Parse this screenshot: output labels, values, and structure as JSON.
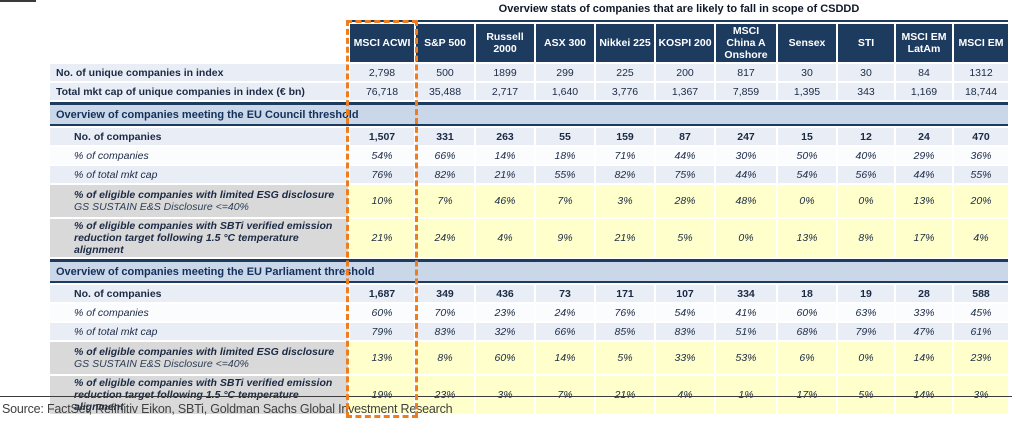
{
  "source": "Source: FactSet, Refinitiv Eikon, SBTi, Goldman Sachs Global Investment Research",
  "colors": {
    "header_navy": "#1d3a5f",
    "section_band_blue": "#c9d7e9",
    "highlight_yellow": "#ffffcb",
    "highlight_label_grey": "#d9d9d9",
    "accent_orange_dashed_box": "#ee7d1e"
  },
  "chart_data": {
    "type": "table",
    "title": "Overview stats of companies that are likely to fall in scope of CSDDD",
    "highlighted_column": "MSCI ACWI",
    "columns": [
      "MSCI ACWI",
      "S&P 500",
      "Russell 2000",
      "ASX 300",
      "Nikkei 225",
      "KOSPI 200",
      "MSCI China A Onshore",
      "Sensex",
      "STI",
      "MSCI EM LatAm",
      "MSCI EM"
    ],
    "rows": [
      {
        "kind": "metric",
        "label": "No. of unique companies in index",
        "label_style": "bold",
        "shade": "light",
        "values": [
          "2,798",
          "500",
          "1899",
          "299",
          "225",
          "200",
          "817",
          "30",
          "30",
          "84",
          "1312"
        ]
      },
      {
        "kind": "metric",
        "label": "Total mkt cap of unique companies in index (€ bn)",
        "label_style": "bold",
        "shade": "light",
        "values": [
          "76,718",
          "35,488",
          "2,717",
          "1,640",
          "3,776",
          "1,367",
          "7,859",
          "1,395",
          "343",
          "1,169",
          "18,744"
        ]
      },
      {
        "kind": "section",
        "label": "Overview of companies meeting the EU Council threshold"
      },
      {
        "kind": "metric",
        "label": "No. of companies",
        "label_style": "bold",
        "indent": true,
        "values_bold": true,
        "shade": "light",
        "values": [
          "1,507",
          "331",
          "263",
          "55",
          "159",
          "87",
          "247",
          "15",
          "12",
          "24",
          "470"
        ]
      },
      {
        "kind": "metric",
        "label": "% of companies",
        "label_style": "italic",
        "indent": true,
        "values_italic": true,
        "shade": "white",
        "values": [
          "54%",
          "66%",
          "14%",
          "18%",
          "71%",
          "44%",
          "30%",
          "50%",
          "40%",
          "29%",
          "36%"
        ]
      },
      {
        "kind": "metric",
        "label": "% of total mkt cap",
        "label_style": "italic",
        "indent": true,
        "values_italic": true,
        "shade": "light",
        "values": [
          "76%",
          "82%",
          "21%",
          "55%",
          "82%",
          "75%",
          "44%",
          "54%",
          "56%",
          "44%",
          "55%"
        ]
      },
      {
        "kind": "highlight",
        "label": "% of eligible companies with limited ESG disclosure",
        "sublabel": "GS SUSTAIN E&S Disclosure <=40%",
        "values": [
          "10%",
          "7%",
          "46%",
          "7%",
          "3%",
          "28%",
          "48%",
          "0%",
          "0%",
          "13%",
          "20%"
        ]
      },
      {
        "kind": "highlight",
        "label": "% of eligible companies with SBTi verified emission reduction target following 1.5 °C temperature alignment",
        "sublabel": "",
        "values": [
          "21%",
          "24%",
          "4%",
          "9%",
          "21%",
          "5%",
          "0%",
          "13%",
          "8%",
          "17%",
          "4%"
        ]
      },
      {
        "kind": "section",
        "label": "Overview of companies meeting the EU Parliament threshold"
      },
      {
        "kind": "metric",
        "label": "No. of companies",
        "label_style": "bold",
        "indent": true,
        "values_bold": true,
        "shade": "light",
        "values": [
          "1,687",
          "349",
          "436",
          "73",
          "171",
          "107",
          "334",
          "18",
          "19",
          "28",
          "588"
        ]
      },
      {
        "kind": "metric",
        "label": "% of companies",
        "label_style": "italic",
        "indent": true,
        "values_italic": true,
        "shade": "white",
        "values": [
          "60%",
          "70%",
          "23%",
          "24%",
          "76%",
          "54%",
          "41%",
          "60%",
          "63%",
          "33%",
          "45%"
        ]
      },
      {
        "kind": "metric",
        "label": "% of total mkt cap",
        "label_style": "italic",
        "indent": true,
        "values_italic": true,
        "shade": "light",
        "values": [
          "79%",
          "83%",
          "32%",
          "66%",
          "85%",
          "83%",
          "51%",
          "68%",
          "79%",
          "47%",
          "61%"
        ]
      },
      {
        "kind": "highlight",
        "label": "% of eligible companies with limited ESG disclosure",
        "sublabel": "GS SUSTAIN E&S Disclosure <=40%",
        "values": [
          "13%",
          "8%",
          "60%",
          "14%",
          "5%",
          "33%",
          "53%",
          "6%",
          "0%",
          "14%",
          "23%"
        ]
      },
      {
        "kind": "highlight",
        "label": "% of eligible companies with SBTi verified emission reduction target following 1.5 °C temperature alignment",
        "sublabel": "",
        "values": [
          "19%",
          "23%",
          "3%",
          "7%",
          "21%",
          "4%",
          "1%",
          "17%",
          "5%",
          "14%",
          "3%"
        ]
      }
    ]
  }
}
